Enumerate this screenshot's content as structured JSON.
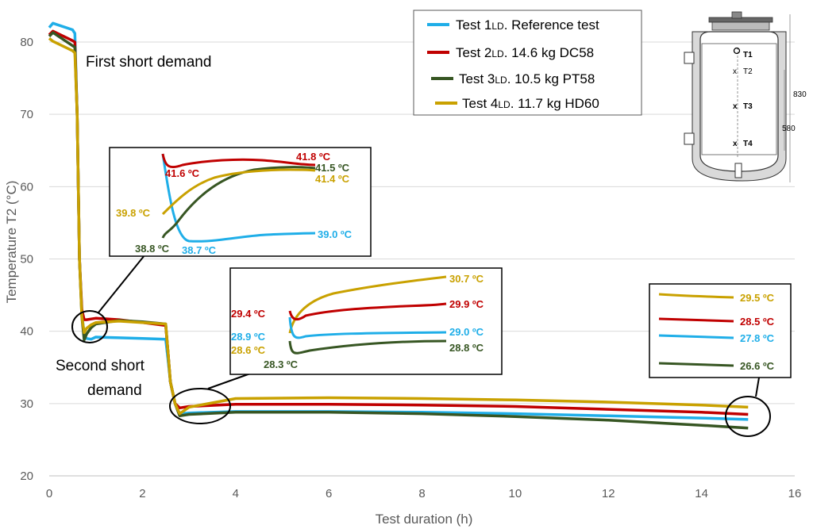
{
  "chart_data": {
    "type": "line",
    "xlabel": "Test duration (h)",
    "ylabel": "Temperature T2 (°C)",
    "xlim": [
      0,
      16
    ],
    "ylim": [
      20,
      85
    ],
    "xticks": [
      0,
      2,
      4,
      6,
      8,
      10,
      12,
      14,
      16
    ],
    "yticks": [
      20,
      30,
      40,
      50,
      60,
      70,
      80
    ],
    "grid": "horizontal",
    "legend_position": "top-right",
    "series": [
      {
        "name": "Test 1LD. Reference test",
        "legend_main": "Test 1",
        "legend_sub": "LD",
        "legend_rest": ". Reference test",
        "color": "#1FAEE8",
        "x": [
          0,
          0.08,
          0.5,
          0.55,
          0.6,
          0.65,
          0.7,
          0.75,
          0.8,
          0.9,
          1.0,
          1.5,
          2.0,
          2.5,
          2.55,
          2.6,
          2.7,
          2.8,
          3.0,
          4.0,
          6.0,
          8.0,
          10.0,
          12.0,
          14.0,
          15.0
        ],
        "y": [
          82.0,
          82.6,
          81.7,
          81.2,
          70.0,
          50.0,
          42.5,
          39.5,
          39.0,
          38.9,
          39.2,
          39.1,
          39.0,
          38.9,
          36.0,
          33.0,
          30.0,
          28.6,
          28.7,
          28.9,
          28.9,
          28.8,
          28.6,
          28.3,
          28.0,
          27.8
        ]
      },
      {
        "name": "Test 2LD. 14.6 kg DC58",
        "legend_main": "Test 2",
        "legend_sub": "LD",
        "legend_rest": ". 14.6 kg DC58",
        "color": "#C00000",
        "x": [
          0,
          0.08,
          0.5,
          0.55,
          0.6,
          0.65,
          0.7,
          0.75,
          0.8,
          0.9,
          1.0,
          1.5,
          2.0,
          2.5,
          2.55,
          2.6,
          2.7,
          2.8,
          3.0,
          4.0,
          6.0,
          8.0,
          10.0,
          12.0,
          14.0,
          15.0
        ],
        "y": [
          81.0,
          81.5,
          80.2,
          80.0,
          70.0,
          50.0,
          43.0,
          41.6,
          41.6,
          41.7,
          41.8,
          41.6,
          41.2,
          40.8,
          37.0,
          33.0,
          30.0,
          29.4,
          29.6,
          29.9,
          29.9,
          29.8,
          29.6,
          29.2,
          28.8,
          28.5
        ]
      },
      {
        "name": "Test 3LD. 10.5 kg PT58",
        "legend_main": "Test 3",
        "legend_sub": "LD",
        "legend_rest": ". 10.5 kg PT58",
        "color": "#375623",
        "x": [
          0,
          0.08,
          0.5,
          0.55,
          0.6,
          0.65,
          0.7,
          0.75,
          0.8,
          0.9,
          1.0,
          1.5,
          2.0,
          2.5,
          2.55,
          2.6,
          2.7,
          2.8,
          3.0,
          4.0,
          6.0,
          8.0,
          10.0,
          12.0,
          14.0,
          15.0
        ],
        "y": [
          80.8,
          81.3,
          79.5,
          79.3,
          70.0,
          50.0,
          42.0,
          38.8,
          39.6,
          40.5,
          41.0,
          41.5,
          41.3,
          41.0,
          37.0,
          33.0,
          30.0,
          28.3,
          28.5,
          28.8,
          28.8,
          28.6,
          28.2,
          27.7,
          27.0,
          26.6
        ]
      },
      {
        "name": "Test 4LD. 11.7 kg HD60",
        "legend_main": "Test 4",
        "legend_sub": "LD",
        "legend_rest": ". 11.7 kg HD60",
        "color": "#C9A100",
        "x": [
          0,
          0.08,
          0.5,
          0.55,
          0.6,
          0.65,
          0.7,
          0.75,
          0.8,
          0.9,
          1.0,
          1.5,
          2.0,
          2.5,
          2.55,
          2.6,
          2.7,
          2.8,
          3.0,
          4.0,
          6.0,
          8.0,
          10.0,
          12.0,
          14.0,
          15.0
        ],
        "y": [
          80.5,
          80.1,
          78.8,
          78.5,
          70.0,
          50.0,
          42.0,
          39.8,
          40.4,
          40.9,
          41.2,
          41.4,
          41.2,
          41.0,
          37.0,
          33.0,
          30.0,
          28.6,
          29.5,
          30.7,
          30.8,
          30.7,
          30.5,
          30.2,
          29.8,
          29.5
        ]
      }
    ],
    "annotations": {
      "first_short_demand": "First short demand",
      "second_short_demand_line1": "Second short",
      "second_short_demand_line2": "demand"
    },
    "insets": [
      {
        "name": "first-demand-inset",
        "labels": [
          {
            "text": "41.8 ºC",
            "color": "#C00000"
          },
          {
            "text": "41.6 ºC",
            "color": "#C00000"
          },
          {
            "text": "41.5 ºC",
            "color": "#375623"
          },
          {
            "text": "41.4 ºC",
            "color": "#C9A100"
          },
          {
            "text": "39.8 ºC",
            "color": "#C9A100"
          },
          {
            "text": "39.0 ºC",
            "color": "#1FAEE8"
          },
          {
            "text": "38.8 ºC",
            "color": "#375623"
          },
          {
            "text": "38.7 ºC",
            "color": "#1FAEE8"
          }
        ]
      },
      {
        "name": "second-demand-inset",
        "labels": [
          {
            "text": "30.7 ºC",
            "color": "#C9A100"
          },
          {
            "text": "29.9 ºC",
            "color": "#C00000"
          },
          {
            "text": "29.4 ºC",
            "color": "#C00000"
          },
          {
            "text": "28.9 ºC",
            "color": "#1FAEE8"
          },
          {
            "text": "29.0 ºC",
            "color": "#1FAEE8"
          },
          {
            "text": "28.6 ºC",
            "color": "#C9A100"
          },
          {
            "text": "28.8 ºC",
            "color": "#375623"
          },
          {
            "text": "28.3 ºC",
            "color": "#375623"
          }
        ]
      },
      {
        "name": "end-inset",
        "labels": [
          {
            "text": "29.5 ºC",
            "color": "#C9A100"
          },
          {
            "text": "28.5 ºC",
            "color": "#C00000"
          },
          {
            "text": "27.8 ºC",
            "color": "#1FAEE8"
          },
          {
            "text": "26.6 ºC",
            "color": "#375623"
          }
        ]
      }
    ],
    "tank_diagram": {
      "sensors": [
        "T1",
        "T2",
        "T3",
        "T4"
      ],
      "dim_outer": "830",
      "dim_inner": "580"
    }
  }
}
